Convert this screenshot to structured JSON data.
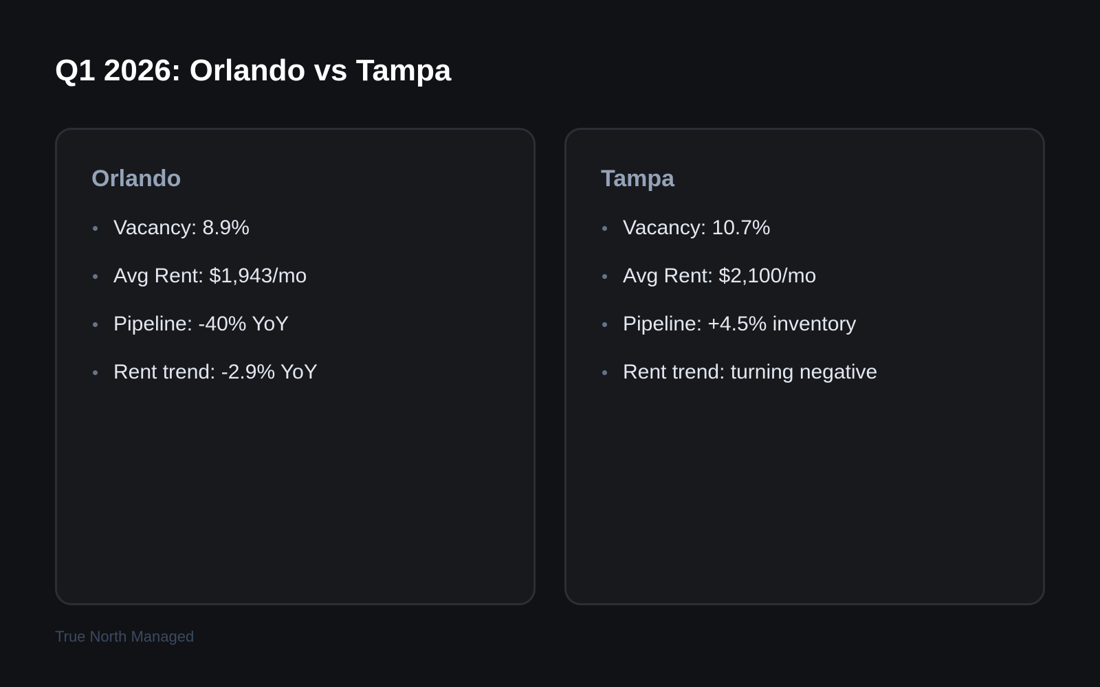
{
  "title": "Q1 2026: Orlando vs Tampa",
  "cards": [
    {
      "city": "Orlando",
      "items": [
        "Vacancy: 8.9%",
        "Avg Rent: $1,943/mo",
        "Pipeline: -40% YoY",
        "Rent trend: -2.9% YoY"
      ]
    },
    {
      "city": "Tampa",
      "items": [
        "Vacancy: 10.7%",
        "Avg Rent: $2,100/mo",
        "Pipeline: +4.5% inventory",
        "Rent trend: turning negative"
      ]
    }
  ],
  "footer": "True North Managed",
  "colors": {
    "background": "#111216",
    "card": "#18191d",
    "heading": "#94a3b8",
    "text": "#e2e8f0"
  }
}
